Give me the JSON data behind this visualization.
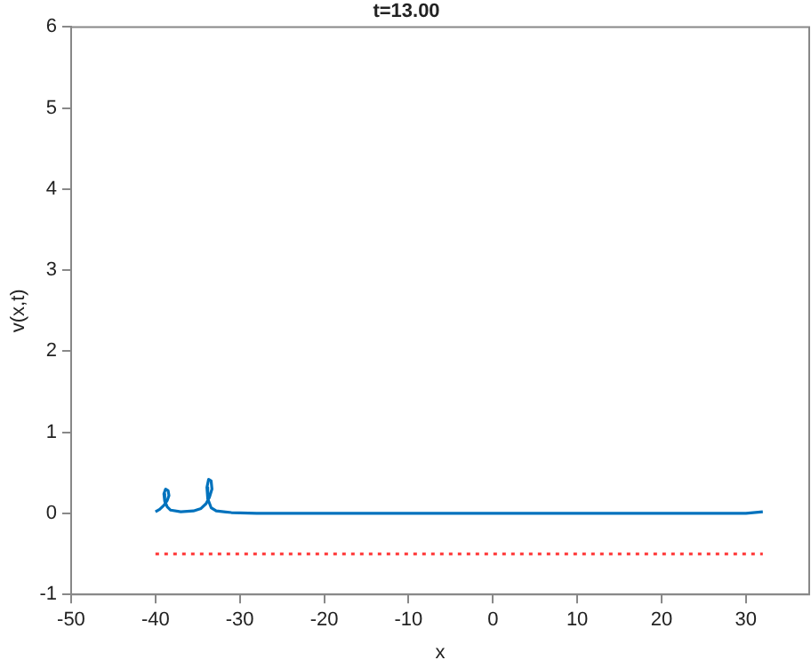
{
  "chart_data": {
    "type": "line",
    "title": "t=13.00",
    "xlabel": "x",
    "ylabel": "v(x,t)",
    "xlim": [
      -50,
      37.5
    ],
    "xticks": [
      -50,
      -40,
      -30,
      -20,
      -10,
      0,
      10,
      20,
      30
    ],
    "ylim": [
      -1,
      6
    ],
    "yticks": [
      -1,
      0,
      1,
      2,
      3,
      4,
      5,
      6
    ],
    "grid": false,
    "legend": false,
    "marker": "none",
    "series": [
      {
        "color": "#0072bd",
        "line_style": "solid",
        "x": [
          -40,
          -39.5,
          -39,
          -38.6,
          -38.4,
          -38.5,
          -38.8,
          -39,
          -38.9,
          -38.6,
          -38.2,
          -37,
          -35.5,
          -34.6,
          -34,
          -33.6,
          -33.3,
          -33.4,
          -33.7,
          -33.9,
          -33.8,
          -33.4,
          -32.8,
          -31,
          -28,
          -20,
          -10,
          0,
          10,
          20,
          30,
          32
        ],
        "values": [
          0.02,
          0.05,
          0.1,
          0.16,
          0.22,
          0.28,
          0.3,
          0.24,
          0.15,
          0.08,
          0.04,
          0.02,
          0.03,
          0.06,
          0.12,
          0.2,
          0.3,
          0.4,
          0.42,
          0.32,
          0.18,
          0.07,
          0.03,
          0.01,
          0,
          0,
          0,
          0,
          0,
          0,
          0,
          0.02
        ]
      },
      {
        "color": "#ff4040",
        "line_style": "dotted",
        "x": [
          -40,
          32
        ],
        "values": [
          -0.5,
          -0.5
        ]
      }
    ]
  }
}
